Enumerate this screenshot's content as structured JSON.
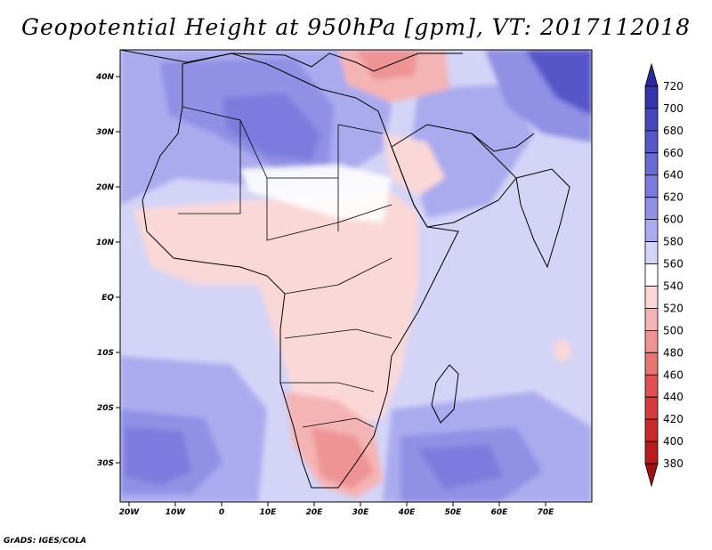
{
  "title": "Geopotential Height at 950hPa [gpm], VT: 2017112018",
  "footer": "GrADS: IGES/COLA",
  "lon_labels": [
    "20W",
    "10W",
    "0",
    "10E",
    "20E",
    "30E",
    "40E",
    "50E",
    "60E",
    "70E"
  ],
  "lat_labels": [
    "40N",
    "30N",
    "20N",
    "10N",
    "EQ",
    "10S",
    "20S",
    "30S"
  ],
  "colorbar": {
    "labels": [
      "720",
      "700",
      "680",
      "660",
      "640",
      "620",
      "600",
      "580",
      "560",
      "540",
      "520",
      "500",
      "480",
      "460",
      "440",
      "420",
      "400",
      "380"
    ],
    "colors": [
      "#2a2a9c",
      "#3434ad",
      "#4646be",
      "#5757c9",
      "#6a6ad4",
      "#7c7cde",
      "#9090e5",
      "#aaaaef",
      "#d4d4f7",
      "#ffffff",
      "#fbd8d8",
      "#f5b4b4",
      "#ee9494",
      "#e87474",
      "#e05050",
      "#d63c3c",
      "#c92a2a",
      "#b81c1c",
      "#a01010"
    ]
  },
  "map_colors": {
    "ocean_blue": "#d4d4f7",
    "blue_mid": "#aaaaef",
    "blue_strong": "#9090e5",
    "blue_deep": "#7c7cde",
    "blue_darkest": "#5757c9",
    "pink_light": "#fbd8d8",
    "pink_mid": "#f5b4b4",
    "pink_strong": "#ee9494",
    "white": "#ffffff"
  }
}
